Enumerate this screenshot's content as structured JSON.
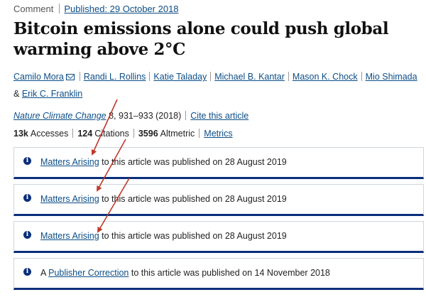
{
  "header": {
    "article_type": "Comment",
    "published": "Published: 29 October 2018"
  },
  "title": "Bitcoin emissions alone could push global warming above 2°C",
  "authors": [
    "Camilo Mora",
    "Randi L. Rollins",
    "Katie Taladay",
    "Michael B. Kantar",
    "Mason K. Chock",
    "Mio Shimada",
    "Erik C. Franklin"
  ],
  "authors_joiner": "&",
  "citation": {
    "journal": "Nature Climate Change",
    "details": "8, 931–933 (2018)",
    "cite_link": "Cite this article"
  },
  "metrics": {
    "accesses_count": "13k",
    "accesses_label": "Accesses",
    "citations_count": "124",
    "citations_label": "Citations",
    "altmetric_count": "3596",
    "altmetric_label": "Altmetric",
    "metrics_link": "Metrics"
  },
  "notices": [
    {
      "prefix": "",
      "link": "Matters Arising",
      "suffix": " to this article was published on 28 August 2019"
    },
    {
      "prefix": "",
      "link": "Matters Arising",
      "suffix": " to this article was published on 28 August 2019"
    },
    {
      "prefix": "",
      "link": "Matters Arising",
      "suffix": " to this article was published on 28 August 2019"
    },
    {
      "prefix": "A ",
      "link": "Publisher Correction",
      "suffix": " to this article was published on 14 November 2018"
    }
  ],
  "colors": {
    "link": "#0c4e87",
    "notice_border": "#0a2f7a",
    "annotation_arrow": "#c0392b"
  },
  "icons": {
    "notice": "info-icon",
    "author_contact": "mail-icon"
  }
}
